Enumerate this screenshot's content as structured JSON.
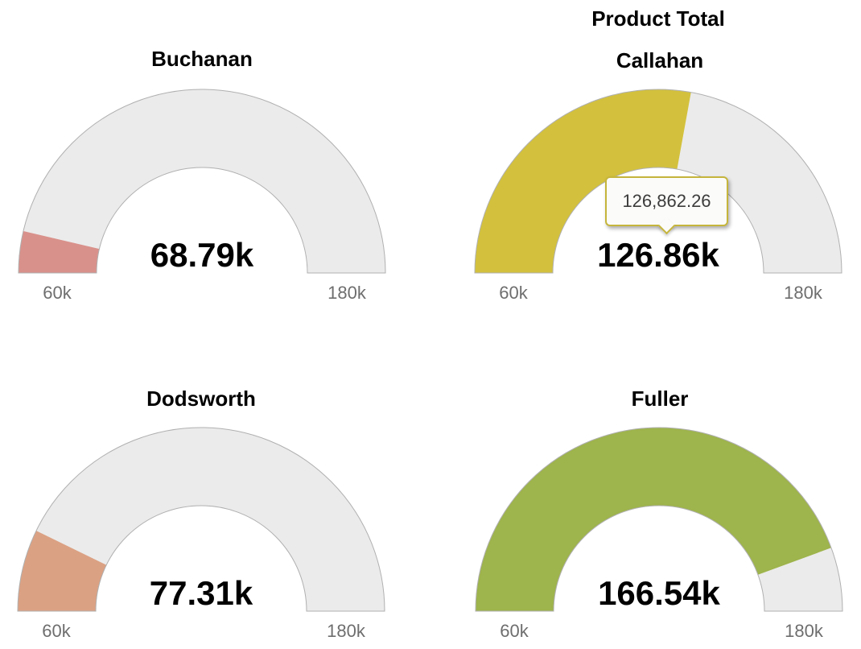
{
  "title": "Product Total",
  "chart_data": {
    "type": "gauge",
    "title": "Product Total",
    "layout": "2x2 grid of semicircular solid gauges, legend off, no gridlines",
    "axis": {
      "min": 60000,
      "max": 180000,
      "min_label": "60k",
      "max_label": "180k"
    },
    "track_color": "#ebebeb",
    "track_border_color": "#b0b0b0",
    "gauges": [
      {
        "name": "Buchanan",
        "value": 68790,
        "value_label": "68.79k",
        "color": "#d9918b"
      },
      {
        "name": "Callahan",
        "value": 126862.26,
        "value_label": "126.86k",
        "color": "#d3c13d"
      },
      {
        "name": "Dodsworth",
        "value": 77310,
        "value_label": "77.31k",
        "color": "#dba183"
      },
      {
        "name": "Fuller",
        "value": 166540,
        "value_label": "166.54k",
        "color": "#9eb44c"
      }
    ],
    "tooltip": {
      "text": "126,862.26",
      "attached_to": "Callahan",
      "border_color": "#c5b53c",
      "background": "#fbfbf9"
    }
  }
}
